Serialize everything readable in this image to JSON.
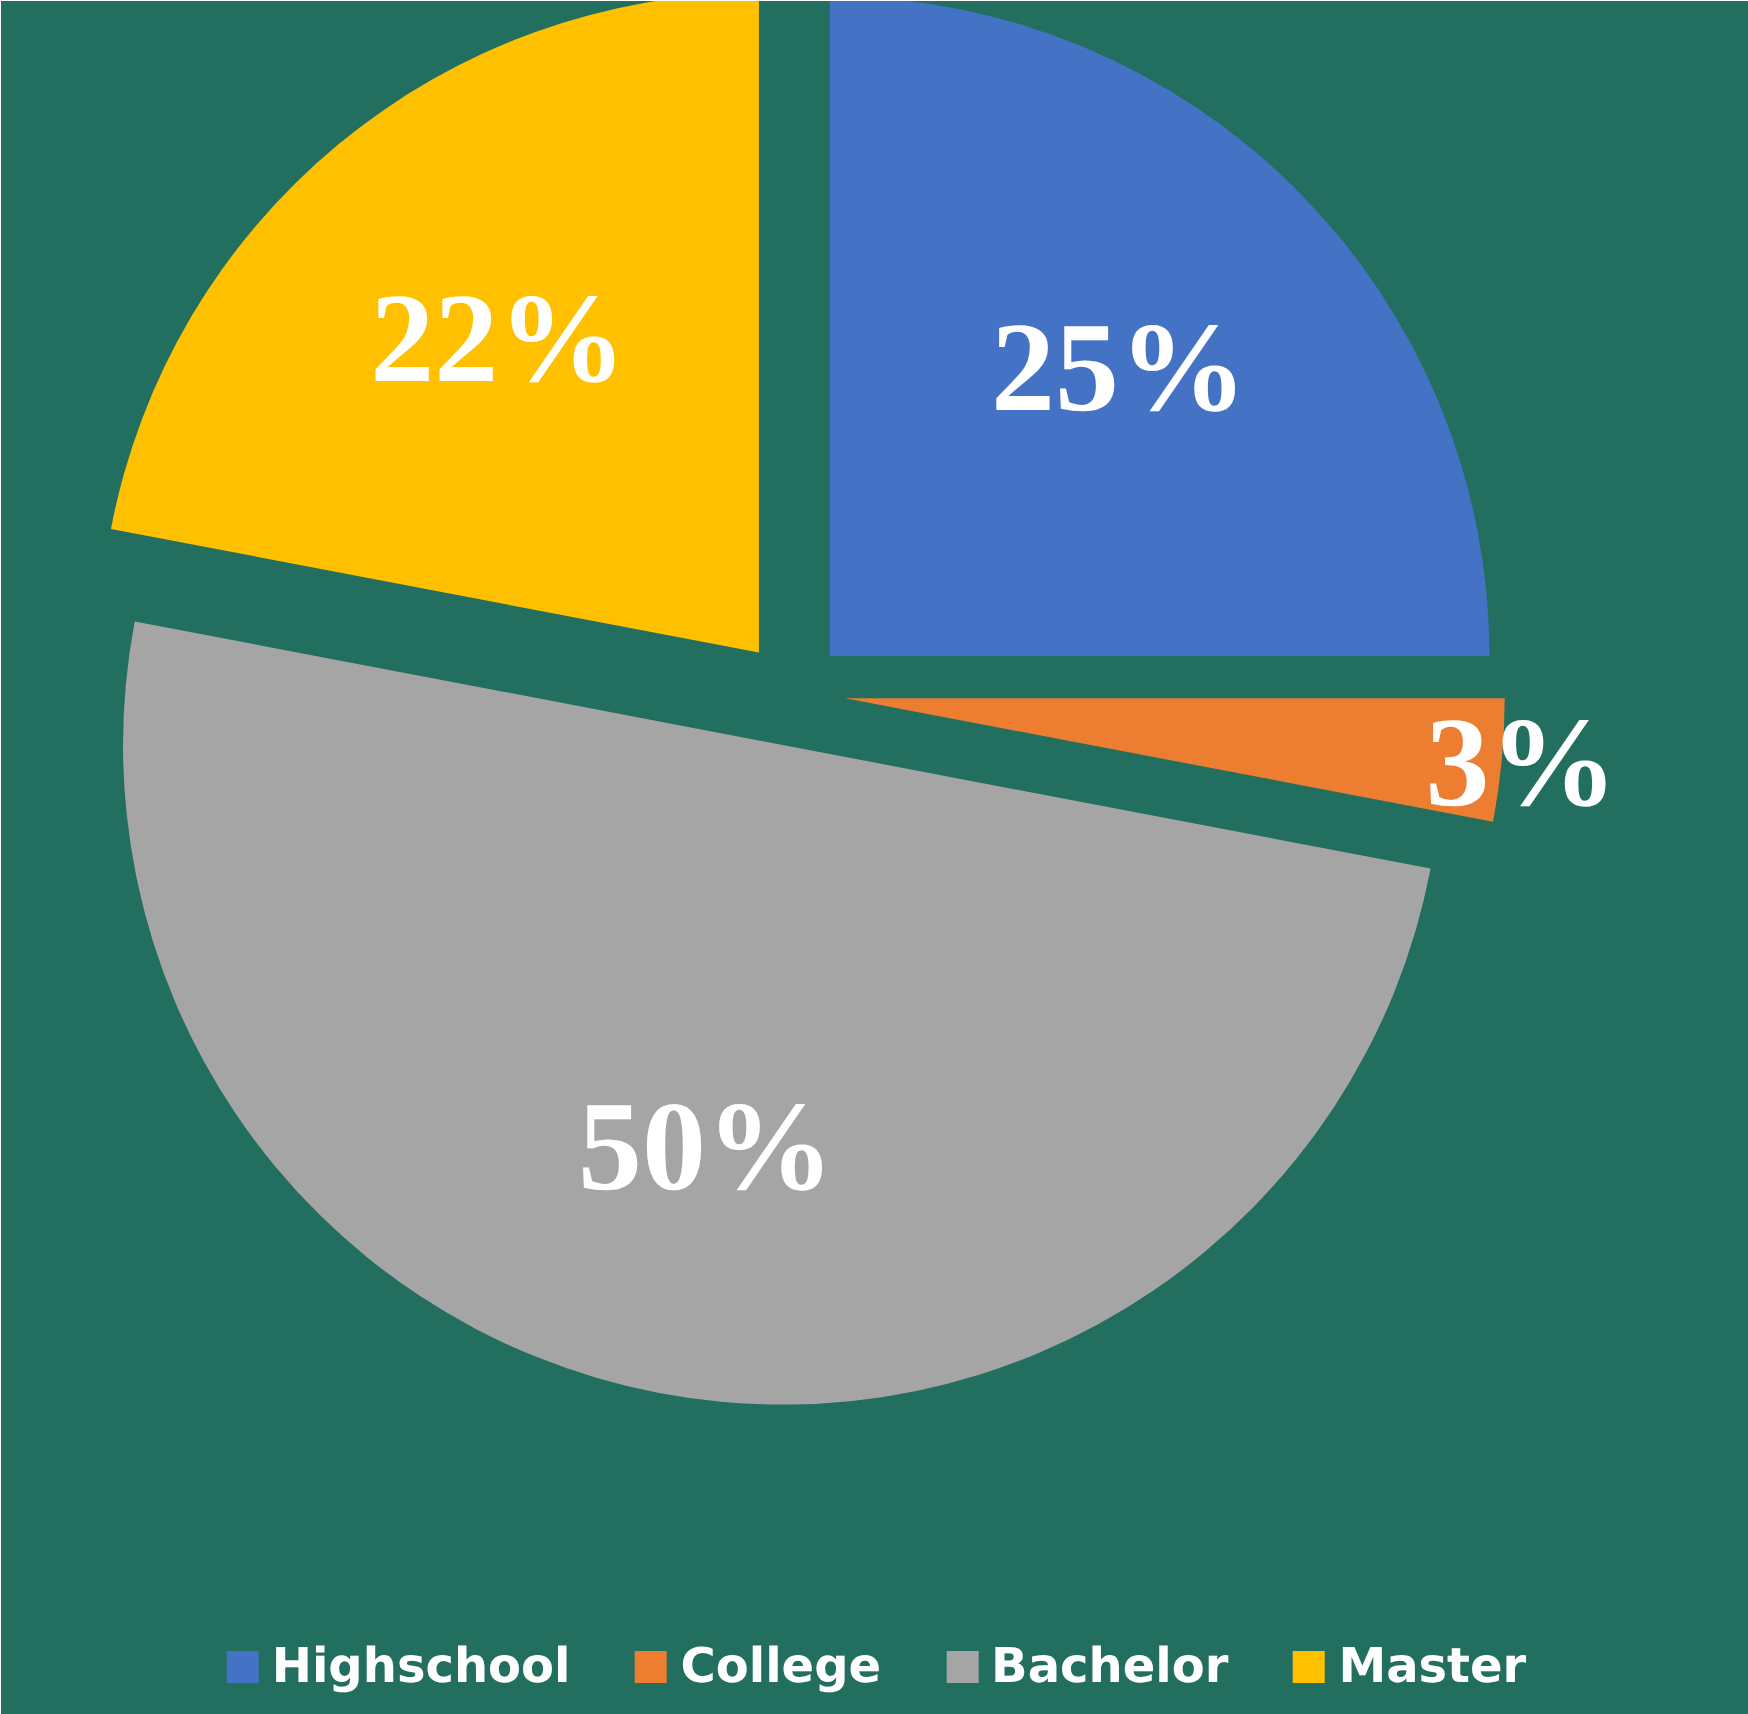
{
  "chart_data": {
    "type": "pie",
    "categories": [
      "Highschool",
      "College",
      "Bachelor",
      "Master"
    ],
    "values": [
      25,
      3,
      50,
      22
    ],
    "colors": [
      "#4472c4",
      "#ed7d31",
      "#a5a5a5",
      "#ffc000"
    ],
    "value_labels": [
      "25%",
      "3%",
      "50%",
      "22%"
    ],
    "legend": "bottom"
  }
}
